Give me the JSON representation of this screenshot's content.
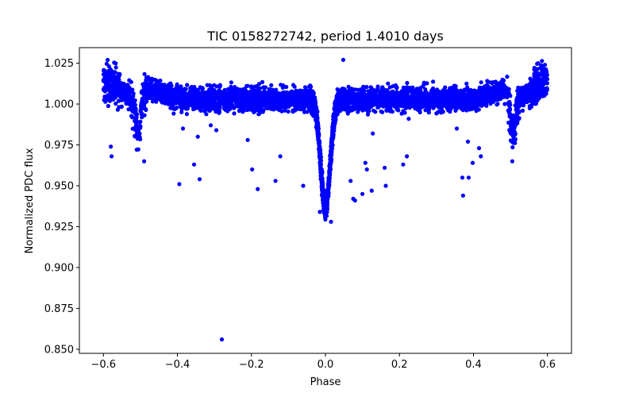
{
  "chart_data": {
    "type": "scatter",
    "title": "TIC 0158272742, period 1.4010 days",
    "xlabel": "Phase",
    "ylabel": "Normalized PDC flux",
    "xlim": [
      -0.665,
      0.665
    ],
    "ylim": [
      0.8475,
      1.0345
    ],
    "xticks": [
      -0.6,
      -0.4,
      -0.2,
      0.0,
      0.2,
      0.4,
      0.6
    ],
    "xtick_labels": [
      "−0.6",
      "−0.4",
      "−0.2",
      "0.0",
      "0.2",
      "0.4",
      "0.6"
    ],
    "yticks": [
      0.85,
      0.875,
      0.9,
      0.925,
      0.95,
      0.975,
      1.0,
      1.025
    ],
    "ytick_labels": [
      "0.850",
      "0.875",
      "0.900",
      "0.925",
      "0.950",
      "0.975",
      "1.000",
      "1.025"
    ],
    "grid": false,
    "marker_color": "#0000ff",
    "series": [
      {
        "outliers": [
          [
            -0.58,
            0.974
          ],
          [
            -0.578,
            0.968
          ],
          [
            -0.49,
            0.965
          ],
          [
            -0.395,
            0.951
          ],
          [
            -0.385,
            0.985
          ],
          [
            -0.355,
            0.963
          ],
          [
            -0.345,
            0.98
          ],
          [
            -0.34,
            0.954
          ],
          [
            -0.31,
            0.987
          ],
          [
            -0.295,
            0.984
          ],
          [
            -0.28,
            0.856
          ],
          [
            -0.21,
            0.978
          ],
          [
            -0.198,
            0.96
          ],
          [
            -0.183,
            0.948
          ],
          [
            -0.135,
            0.953
          ],
          [
            -0.122,
            0.968
          ],
          [
            -0.06,
            0.95
          ],
          [
            -0.015,
            0.934
          ],
          [
            0.015,
            0.928
          ],
          [
            0.048,
            1.027
          ],
          [
            0.068,
            0.953
          ],
          [
            0.075,
            0.942
          ],
          [
            0.08,
            0.941
          ],
          [
            0.1,
            0.945
          ],
          [
            0.108,
            0.964
          ],
          [
            0.112,
            0.96
          ],
          [
            0.125,
            0.947
          ],
          [
            0.128,
            0.982
          ],
          [
            0.16,
            0.961
          ],
          [
            0.163,
            0.95
          ],
          [
            0.21,
            0.963
          ],
          [
            0.22,
            0.968
          ],
          [
            0.225,
            0.991
          ],
          [
            0.355,
            0.985
          ],
          [
            0.37,
            0.955
          ],
          [
            0.372,
            0.944
          ],
          [
            0.385,
            0.977
          ],
          [
            0.387,
            0.955
          ],
          [
            0.398,
            0.964
          ],
          [
            0.415,
            0.973
          ],
          [
            0.42,
            0.968
          ],
          [
            0.505,
            0.965
          ]
        ]
      }
    ]
  }
}
